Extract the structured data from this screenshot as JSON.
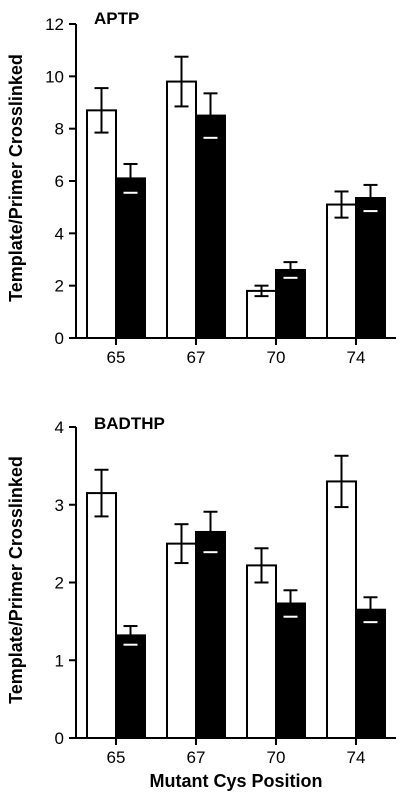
{
  "chart_data": [
    {
      "type": "bar",
      "title": "APTP",
      "ylabel": "Template/Primer Crosslinked",
      "xlabel": "",
      "categories": [
        "65",
        "67",
        "70",
        "74"
      ],
      "ylim": [
        0,
        12
      ],
      "yticks": [
        "0",
        "2",
        "4",
        "6",
        "8",
        "10",
        "12"
      ],
      "series": [
        {
          "fill": "#ffffff",
          "values": [
            8.7,
            9.8,
            1.8,
            5.1
          ],
          "errors": [
            0.85,
            0.95,
            0.2,
            0.5
          ]
        },
        {
          "fill": "#000000",
          "values": [
            6.1,
            8.5,
            2.6,
            5.35
          ],
          "errors": [
            0.55,
            0.85,
            0.3,
            0.5
          ]
        }
      ]
    },
    {
      "type": "bar",
      "title": "BADTHP",
      "ylabel": "Template/Primer Crosslinked",
      "xlabel": "Mutant Cys Position",
      "categories": [
        "65",
        "67",
        "70",
        "74"
      ],
      "ylim": [
        0,
        4
      ],
      "yticks": [
        "0",
        "1",
        "2",
        "3",
        "4"
      ],
      "series": [
        {
          "fill": "#ffffff",
          "values": [
            3.15,
            2.5,
            2.22,
            3.3
          ],
          "errors": [
            0.3,
            0.25,
            0.22,
            0.33
          ]
        },
        {
          "fill": "#000000",
          "values": [
            1.32,
            2.65,
            1.73,
            1.65
          ],
          "errors": [
            0.12,
            0.26,
            0.17,
            0.16
          ]
        }
      ]
    }
  ]
}
